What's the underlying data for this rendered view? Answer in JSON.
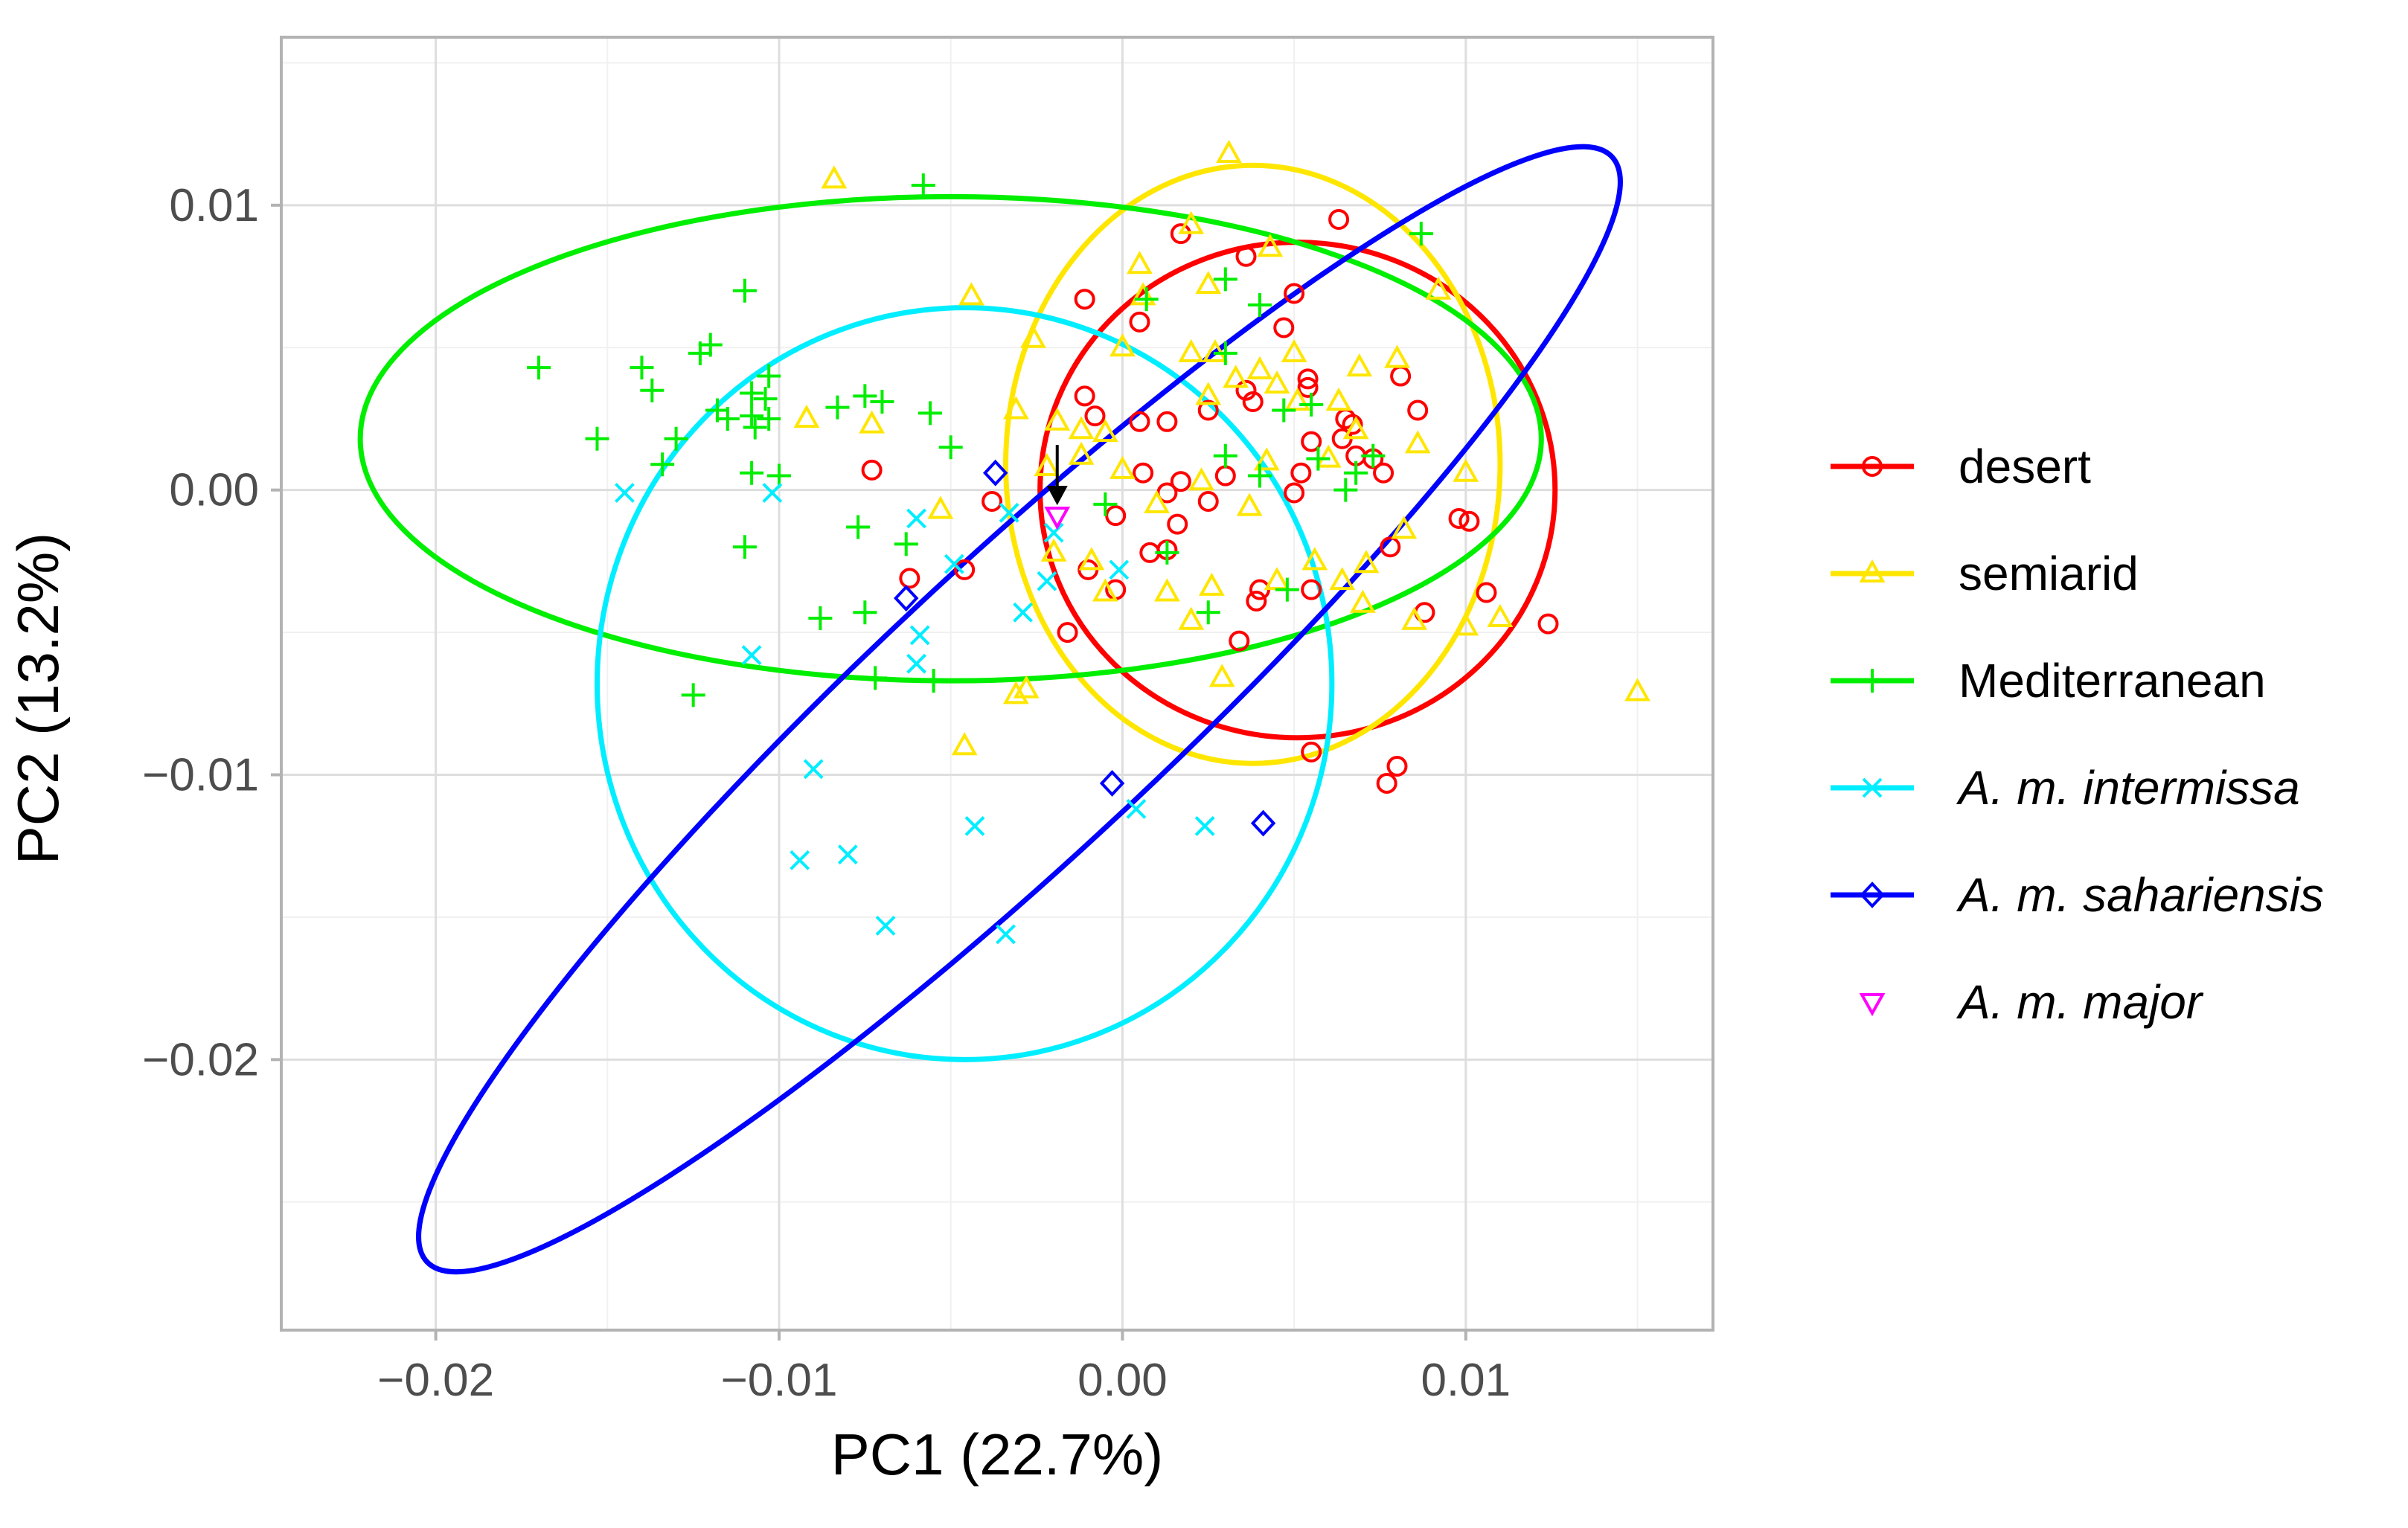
{
  "chart_data": {
    "type": "scatter",
    "title": "",
    "xlabel": "PC1 (22.7%)",
    "ylabel": "PC2 (13.2%)",
    "xlim": [
      -0.0245,
      0.0172
    ],
    "ylim": [
      -0.0295,
      0.0159
    ],
    "xticks": [
      -0.02,
      -0.01,
      0.0,
      0.01
    ],
    "xtick_labels": [
      "−0.02",
      "−0.01",
      "0.00",
      "0.01"
    ],
    "yticks": [
      -0.02,
      -0.01,
      0.0,
      0.01
    ],
    "ytick_labels": [
      "−0.02",
      "−0.01",
      "0.00",
      "0.01"
    ],
    "grid": true,
    "legend_position": "right",
    "annotation": "arrow pointing to the A. m. major sample",
    "series": [
      {
        "name": "desert",
        "color": "#FF0000",
        "marker": "circle",
        "italic": false,
        "ellipse": {
          "cx": 0.0051,
          "cy": 0.0,
          "rx": 0.0075,
          "ry": 0.0087
        },
        "points": [
          [
            0.0017,
            0.009
          ],
          [
            0.0036,
            0.0082
          ],
          [
            0.0063,
            0.0095
          ],
          [
            0.0005,
            0.0059
          ],
          [
            -0.0011,
            0.0067
          ],
          [
            0.0047,
            0.0057
          ],
          [
            0.005,
            0.0069
          ],
          [
            0.0081,
            0.004
          ],
          [
            0.0036,
            0.0035
          ],
          [
            0.0054,
            0.0039
          ],
          [
            0.0054,
            0.0036
          ],
          [
            0.0065,
            0.0025
          ],
          [
            0.0064,
            0.0018
          ],
          [
            0.0068,
            0.0012
          ],
          [
            0.0073,
            0.0011
          ],
          [
            0.0067,
            0.0023
          ],
          [
            0.0086,
            0.0028
          ],
          [
            0.0055,
            0.0017
          ],
          [
            0.0076,
            0.0006
          ],
          [
            0.0052,
            0.0006
          ],
          [
            0.005,
            -0.0001
          ],
          [
            -0.0011,
            0.0033
          ],
          [
            -0.0008,
            0.0026
          ],
          [
            0.0005,
            0.0024
          ],
          [
            0.0013,
            0.0024
          ],
          [
            0.0025,
            0.0028
          ],
          [
            0.0038,
            0.0031
          ],
          [
            0.0006,
            0.0006
          ],
          [
            0.0017,
            0.0003
          ],
          [
            0.0013,
            -0.0001
          ],
          [
            0.003,
            0.0005
          ],
          [
            0.0025,
            -0.0004
          ],
          [
            0.0016,
            -0.0012
          ],
          [
            0.0013,
            -0.0021
          ],
          [
            0.0008,
            -0.0022
          ],
          [
            -0.0002,
            -0.0009
          ],
          [
            -0.0038,
            -0.0004
          ],
          [
            -0.0073,
            0.0007
          ],
          [
            -0.0062,
            -0.0031
          ],
          [
            -0.0046,
            -0.0028
          ],
          [
            -0.001,
            -0.0028
          ],
          [
            -0.0002,
            -0.0035
          ],
          [
            -0.0016,
            -0.005
          ],
          [
            0.004,
            -0.0035
          ],
          [
            0.0055,
            -0.0035
          ],
          [
            0.0078,
            -0.002
          ],
          [
            0.0088,
            -0.0043
          ],
          [
            0.0098,
            -0.001
          ],
          [
            0.0101,
            -0.0011
          ],
          [
            0.0106,
            -0.0036
          ],
          [
            0.0124,
            -0.0047
          ],
          [
            0.0077,
            -0.0103
          ],
          [
            0.008,
            -0.0097
          ],
          [
            0.0055,
            -0.0092
          ],
          [
            0.0034,
            -0.0053
          ],
          [
            0.0039,
            -0.0039
          ]
        ]
      },
      {
        "name": "semiarid",
        "color": "#FFE600",
        "marker": "triangle-up",
        "italic": false,
        "ellipse": {
          "cx": 0.0038,
          "cy": 0.0009,
          "rx": 0.0072,
          "ry": 0.0105
        },
        "points": [
          [
            0.0031,
            0.0118
          ],
          [
            -0.0084,
            0.0109
          ],
          [
            0.002,
            0.0093
          ],
          [
            0.0043,
            0.0085
          ],
          [
            0.0005,
            0.0079
          ],
          [
            0.0006,
            0.0068
          ],
          [
            0.0025,
            0.0072
          ],
          [
            -0.0044,
            0.0068
          ],
          [
            0.0,
            0.005
          ],
          [
            0.002,
            0.0048
          ],
          [
            0.0027,
            0.0048
          ],
          [
            0.004,
            0.0042
          ],
          [
            0.005,
            0.0048
          ],
          [
            0.0069,
            0.0043
          ],
          [
            0.008,
            0.0046
          ],
          [
            0.0092,
            0.007
          ],
          [
            0.0045,
            0.0037
          ],
          [
            0.0051,
            0.0031
          ],
          [
            0.0063,
            0.0031
          ],
          [
            0.0033,
            0.0039
          ],
          [
            0.0025,
            0.0033
          ],
          [
            -0.0026,
            0.0053
          ],
          [
            -0.0019,
            0.0024
          ],
          [
            -0.0012,
            0.0021
          ],
          [
            -0.0005,
            0.002
          ],
          [
            -0.0012,
            0.0012
          ],
          [
            -0.0031,
            0.0028
          ],
          [
            -0.0022,
            0.0008
          ],
          [
            0.0,
            0.0007
          ],
          [
            0.001,
            -0.0005
          ],
          [
            0.0023,
            0.0003
          ],
          [
            0.0042,
            0.001
          ],
          [
            0.006,
            0.0011
          ],
          [
            0.0068,
            0.0021
          ],
          [
            0.0086,
            0.0016
          ],
          [
            0.01,
            0.0006
          ],
          [
            -0.0053,
            -0.0007
          ],
          [
            -0.0009,
            -0.0025
          ],
          [
            -0.002,
            -0.0022
          ],
          [
            0.002,
            -0.0046
          ],
          [
            0.0026,
            -0.0034
          ],
          [
            0.0045,
            -0.0032
          ],
          [
            0.0064,
            -0.0032
          ],
          [
            0.007,
            -0.004
          ],
          [
            0.0085,
            -0.0046
          ],
          [
            0.0071,
            -0.0026
          ],
          [
            0.0082,
            -0.0014
          ],
          [
            0.01,
            -0.0048
          ],
          [
            0.011,
            -0.0045
          ],
          [
            -0.0046,
            -0.009
          ],
          [
            -0.0028,
            -0.007
          ],
          [
            -0.0031,
            -0.0072
          ],
          [
            0.0029,
            -0.0066
          ],
          [
            0.0013,
            -0.0036
          ],
          [
            0.0056,
            -0.0025
          ],
          [
            -0.0073,
            0.0023
          ],
          [
            -0.0092,
            0.0025
          ],
          [
            0.015,
            -0.0071
          ],
          [
            -0.0005,
            -0.0036
          ],
          [
            0.0037,
            -0.0006
          ]
        ]
      },
      {
        "name": "Mediterranean",
        "color": "#00EE00",
        "marker": "plus",
        "italic": false,
        "ellipse": {
          "cx": -0.005,
          "cy": 0.0018,
          "rx": 0.0172,
          "ry": 0.0085
        },
        "points": [
          [
            -0.0058,
            0.0107
          ],
          [
            0.0087,
            0.009
          ],
          [
            -0.011,
            0.007
          ],
          [
            -0.0123,
            0.0048
          ],
          [
            -0.012,
            0.0051
          ],
          [
            -0.014,
            0.0043
          ],
          [
            -0.0137,
            0.0035
          ],
          [
            -0.017,
            0.0043
          ],
          [
            -0.0153,
            0.0018
          ],
          [
            -0.0107,
            0.0022
          ],
          [
            -0.0108,
            0.0026
          ],
          [
            -0.0103,
            0.0025
          ],
          [
            -0.0103,
            0.004
          ],
          [
            -0.0104,
            0.0032
          ],
          [
            -0.0108,
            0.0034
          ],
          [
            -0.0115,
            0.0025
          ],
          [
            -0.0118,
            0.0028
          ],
          [
            -0.0083,
            0.0029
          ],
          [
            -0.0075,
            0.0033
          ],
          [
            -0.007,
            0.0031
          ],
          [
            -0.0056,
            0.0027
          ],
          [
            -0.013,
            0.0018
          ],
          [
            -0.0134,
            0.0009
          ],
          [
            -0.01,
            0.0005
          ],
          [
            -0.0108,
            0.0006
          ],
          [
            -0.0077,
            -0.0013
          ],
          [
            -0.0063,
            -0.0019
          ],
          [
            -0.011,
            -0.002
          ],
          [
            -0.0088,
            -0.0045
          ],
          [
            -0.0075,
            -0.0043
          ],
          [
            -0.0125,
            -0.0072
          ],
          [
            -0.0072,
            -0.0066
          ],
          [
            -0.0055,
            -0.0067
          ],
          [
            -0.005,
            0.0015
          ],
          [
            0.0007,
            0.0067
          ],
          [
            0.003,
            0.0074
          ],
          [
            0.004,
            0.0065
          ],
          [
            0.003,
            0.0048
          ],
          [
            0.0047,
            0.0028
          ],
          [
            0.0055,
            0.003
          ],
          [
            0.0057,
            0.0011
          ],
          [
            0.0065,
            0.0
          ],
          [
            0.0068,
            0.0006
          ],
          [
            0.003,
            0.0012
          ],
          [
            0.004,
            0.0005
          ],
          [
            -0.0005,
            -0.0005
          ],
          [
            0.0013,
            -0.0022
          ],
          [
            0.0025,
            -0.0043
          ],
          [
            0.0048,
            -0.0035
          ],
          [
            0.0073,
            0.0012
          ]
        ]
      },
      {
        "name": "A. m. intermissa",
        "color": "#00EEFF",
        "marker": "cross",
        "italic": true,
        "ellipse": {
          "cx": -0.0046,
          "cy": -0.0068,
          "rx": 0.0107,
          "ry": 0.0132
        },
        "points": [
          [
            -0.0145,
            -0.0001
          ],
          [
            -0.0102,
            -0.0001
          ],
          [
            -0.006,
            -0.001
          ],
          [
            -0.0049,
            -0.0026
          ],
          [
            -0.0033,
            -0.0008
          ],
          [
            -0.002,
            -0.0015
          ],
          [
            -0.0022,
            -0.0032
          ],
          [
            -0.0029,
            -0.0043
          ],
          [
            -0.0059,
            -0.0051
          ],
          [
            -0.006,
            -0.0061
          ],
          [
            -0.0001,
            -0.0028
          ],
          [
            -0.0108,
            -0.0058
          ],
          [
            -0.009,
            -0.0098
          ],
          [
            -0.0094,
            -0.013
          ],
          [
            -0.008,
            -0.0128
          ],
          [
            -0.0069,
            -0.0153
          ],
          [
            -0.0043,
            -0.0118
          ],
          [
            -0.0034,
            -0.0156
          ],
          [
            0.0004,
            -0.0112
          ],
          [
            0.0024,
            -0.0118
          ]
        ]
      },
      {
        "name": "A. m. sahariensis",
        "color": "#0000FF",
        "marker": "diamond",
        "italic": true,
        "ellipse": {
          "cx": -0.003,
          "cy": -0.0077,
          "rx": 0.0236,
          "ry": 0.0051,
          "angle": -43
        },
        "points": [
          [
            -0.0037,
            0.0006
          ],
          [
            -0.0063,
            -0.0038
          ],
          [
            -0.0003,
            -0.0103
          ],
          [
            0.0041,
            -0.0117
          ]
        ]
      },
      {
        "name": "A. m. major",
        "color": "#FF00FF",
        "marker": "triangle-down",
        "italic": true,
        "ellipse": null,
        "points": [
          [
            -0.0019,
            -0.0009
          ]
        ]
      }
    ]
  }
}
